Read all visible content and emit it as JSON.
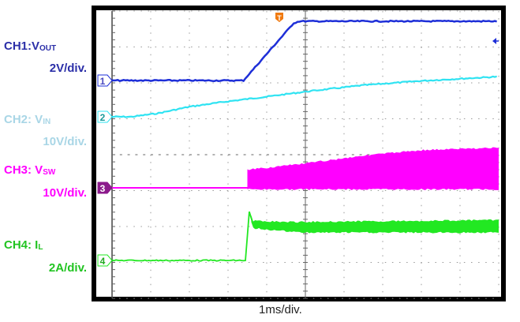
{
  "chart_data": {
    "type": "line",
    "title": "",
    "xlabel": "1ms/div.",
    "x_unit": "ms",
    "xlim": [
      0,
      10
    ],
    "grid": true,
    "trigger_marker": "T",
    "channels": [
      {
        "id": "1",
        "label": "CH1:V",
        "sub": "OUT",
        "scale_label": "2V/div.",
        "volts_per_div": 2,
        "unit": "V",
        "color": "#1e2fd8",
        "text_color": "#2b2fa8",
        "points": [
          [
            0,
            0
          ],
          [
            3.4,
            0
          ],
          [
            4.7,
            3.2
          ],
          [
            4.85,
            3.3
          ],
          [
            10,
            3.3
          ]
        ]
      },
      {
        "id": "2",
        "label": "CH2: V",
        "sub": "IN",
        "scale_label": "10V/div.",
        "volts_per_div": 10,
        "unit": "V",
        "color": "#2fe3f2",
        "text_color": "#a9d6e6",
        "points": [
          [
            0,
            0
          ],
          [
            0.5,
            0
          ],
          [
            1.2,
            1.0
          ],
          [
            2,
            2.8
          ],
          [
            3,
            4.3
          ],
          [
            4,
            5.6
          ],
          [
            5,
            7.0
          ],
          [
            6.5,
            8.8
          ],
          [
            8,
            10.0
          ],
          [
            10,
            11.2
          ]
        ]
      },
      {
        "id": "3",
        "label": "CH3: V",
        "sub": "SW",
        "scale_label": "10V/div.",
        "volts_per_div": 10,
        "unit": "V",
        "color": "#ff00ff",
        "text_color": "#ff00ff",
        "switching_start_ms": 3.5,
        "envelope_high": [
          [
            3.5,
            5
          ],
          [
            5,
            6.8
          ],
          [
            6.5,
            9
          ],
          [
            8,
            10.5
          ],
          [
            10,
            11.2
          ]
        ],
        "envelope_low": [
          [
            3.5,
            0
          ],
          [
            10,
            0
          ]
        ]
      },
      {
        "id": "4",
        "label": "CH4: I",
        "sub": "L",
        "scale_label": "2A/div.",
        "volts_per_div": 2,
        "unit": "A",
        "color": "#22e822",
        "text_color": "#22c422",
        "points": [
          [
            0,
            0
          ],
          [
            3.45,
            0
          ],
          [
            3.55,
            2.7
          ],
          [
            3.65,
            2.0
          ],
          [
            4,
            1.95
          ],
          [
            4.8,
            1.85
          ],
          [
            10,
            1.9
          ]
        ],
        "ripple_half_amplitude": [
          [
            3.6,
            0.2
          ],
          [
            5,
            0.3
          ],
          [
            10,
            0.35
          ]
        ]
      }
    ]
  }
}
